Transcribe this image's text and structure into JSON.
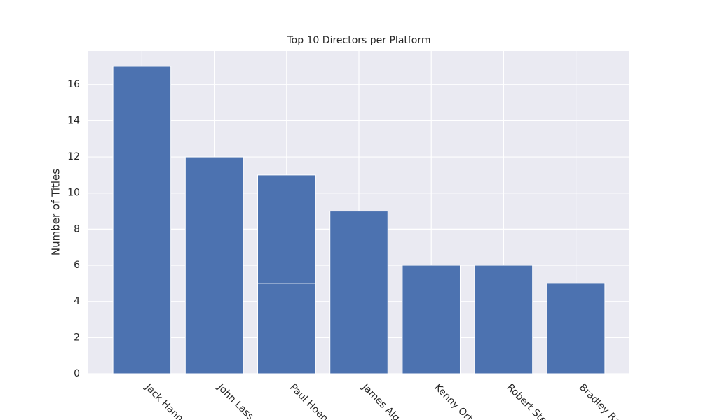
{
  "chart_data": {
    "type": "bar",
    "title": "Top 10 Directors per Platform",
    "y_label": "Number of Titles",
    "categories": [
      "Jack Hann",
      "John Lass",
      "Paul Hoen",
      "James Alg",
      "Kenny Ort",
      "Robert Ste",
      "Bradley Ra"
    ],
    "series": [
      {
        "color": "#4c72b0",
        "values": [
          17,
          12,
          11,
          9,
          6,
          6,
          5
        ]
      },
      {
        "color": "#4c72b0",
        "values": [
          null,
          null,
          5,
          null,
          null,
          null,
          null
        ]
      }
    ],
    "ylim": [
      0,
      17.85
    ],
    "yticks": [
      0,
      2,
      4,
      6,
      8,
      10,
      12,
      14,
      16
    ],
    "grid": true
  }
}
